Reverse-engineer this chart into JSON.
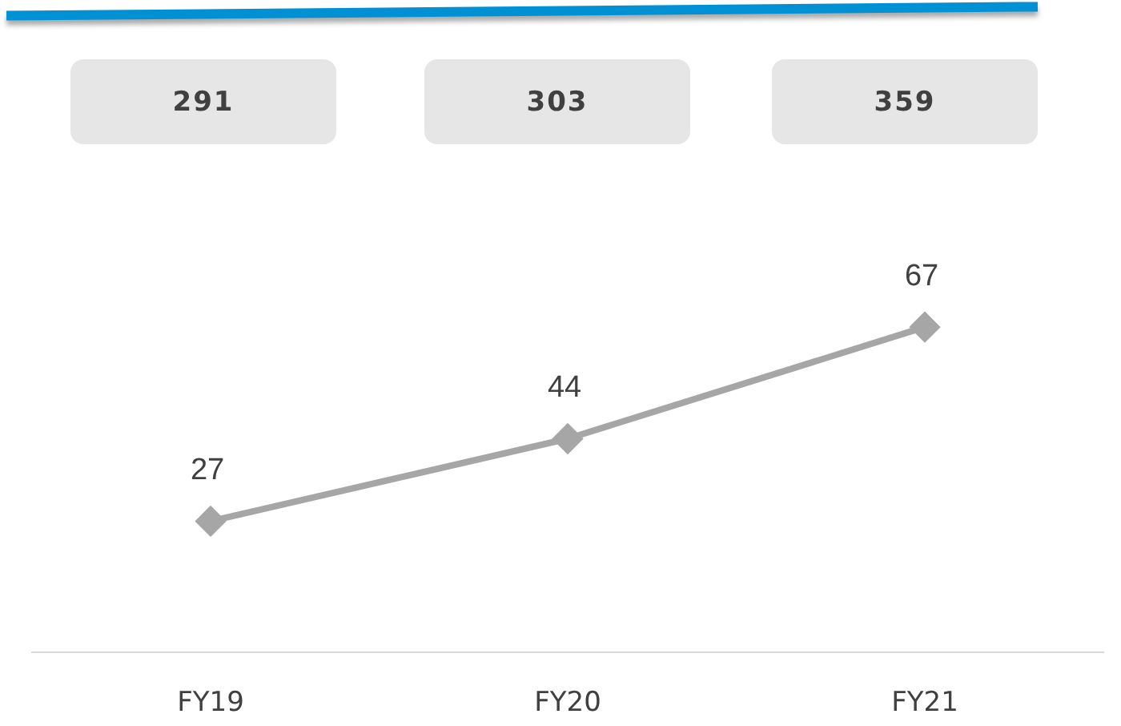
{
  "chart_data": [
    {
      "type": "other",
      "categories": [
        null,
        null,
        null
      ],
      "values": [
        291,
        303,
        359
      ],
      "color": "#e6e6e6",
      "data_labels": true
    },
    {
      "type": "line",
      "categories": [
        "FY19",
        "FY20",
        "FY21"
      ],
      "values": [
        27,
        44,
        67
      ],
      "color": "#a6a6a6",
      "marker": "diamond",
      "data_labels": true,
      "tick_labels": "x",
      "grid": false,
      "legend": false
    }
  ]
}
